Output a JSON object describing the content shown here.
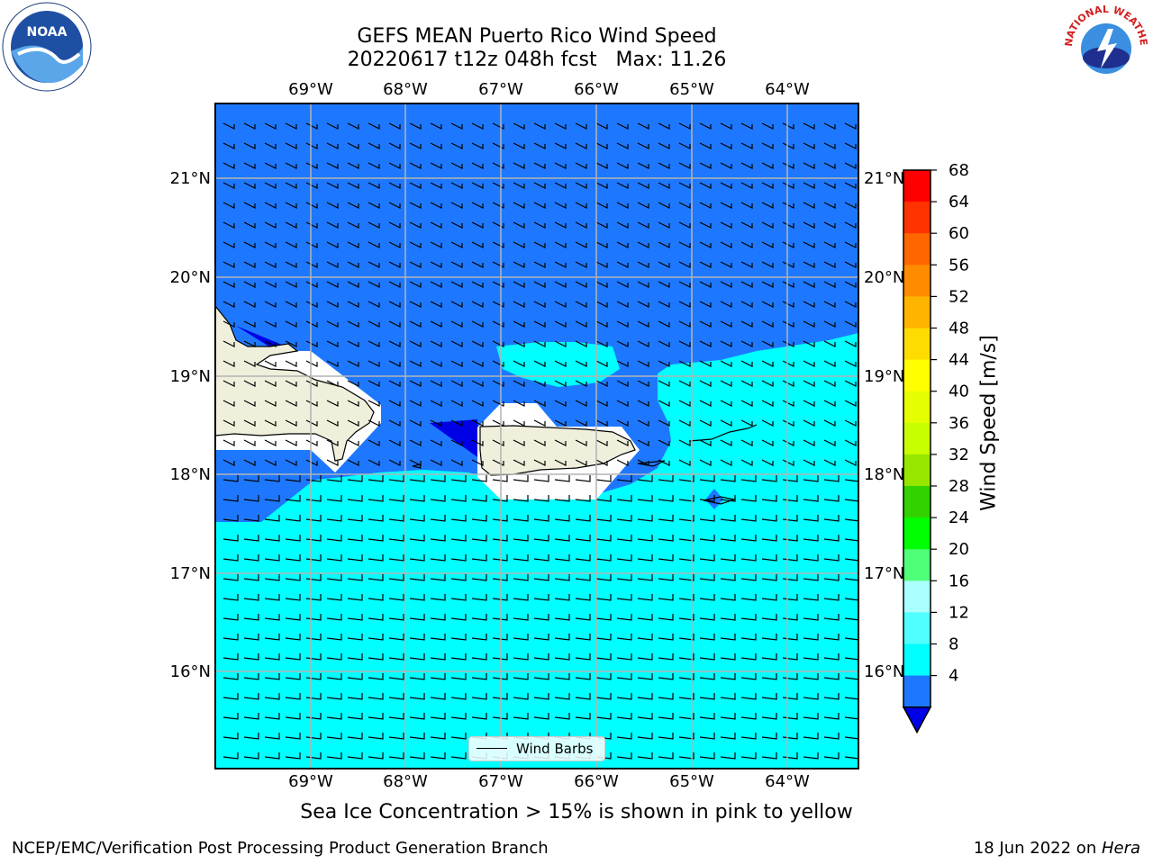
{
  "title": {
    "line1": "GEFS MEAN Puerto Rico Wind Speed",
    "line2": "20220617 t12z 048h fcst   Max: 11.26"
  },
  "logos": {
    "left": {
      "name": "noaa-logo",
      "text": "NOAA"
    },
    "right": {
      "name": "nws-logo",
      "text": "NATIONAL WEATHER SERVICE"
    }
  },
  "map": {
    "lon_labels": [
      "69°W",
      "68°W",
      "67°W",
      "66°W",
      "65°W",
      "64°W"
    ],
    "lat_labels": [
      "21°N",
      "20°N",
      "19°N",
      "18°N",
      "17°N",
      "16°N"
    ],
    "legend": "Wind Barbs",
    "colors": {
      "wind_4_8": "#1e78ff",
      "wind_8_12": "#00ffff",
      "wind_below_4": "#0000e6",
      "land": "#efefdc",
      "gridline": "#b4b4b4"
    }
  },
  "colorbar": {
    "label": "Wind Speed [m/s]",
    "ticks": [
      "68",
      "64",
      "60",
      "56",
      "52",
      "48",
      "44",
      "40",
      "36",
      "32",
      "28",
      "24",
      "20",
      "16",
      "12",
      "8",
      "4"
    ],
    "colors": [
      "#ff0000",
      "#ff3300",
      "#ff6600",
      "#ff8c00",
      "#ffb400",
      "#ffdc00",
      "#ffff00",
      "#e6ff00",
      "#c8ff00",
      "#96e600",
      "#32d200",
      "#00ff00",
      "#50ff78",
      "#aaffff",
      "#50ffff",
      "#00ffff",
      "#1e78ff"
    ],
    "under_color": "#0000e6"
  },
  "footer": {
    "note": "Sea Ice Concentration > 15% is shown in pink to yellow",
    "left": "NCEP/EMC/Verification Post Processing Product Generation Branch",
    "right_prefix": "18 Jun 2022 on ",
    "right_italic": "Hera"
  }
}
